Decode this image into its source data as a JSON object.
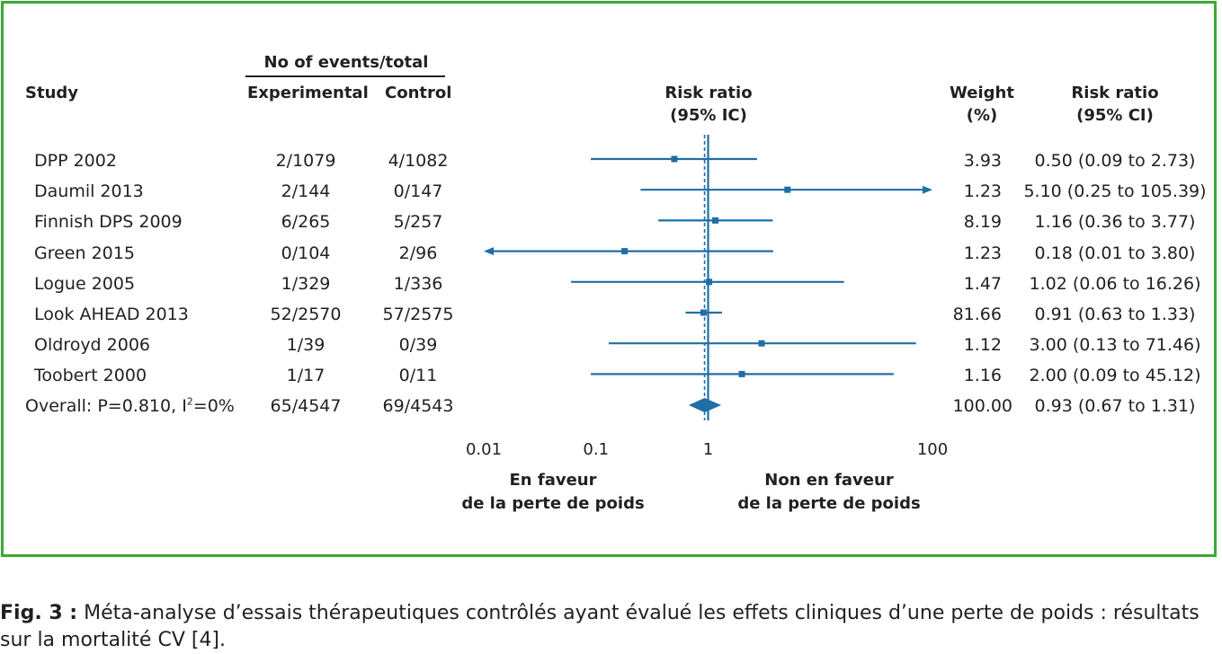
{
  "headers": {
    "study": "Study",
    "events_group": "No of events/total",
    "experimental": "Experimental",
    "control": "Control",
    "rr_plot_line1": "Risk ratio",
    "rr_plot_line2": "(95% IC)",
    "weight_line1": "Weight",
    "weight_line2": "(%)",
    "rr_ci_line1": "Risk ratio",
    "rr_ci_line2": "(95% CI)"
  },
  "overall": {
    "label_prefix": "Overall: P=0.810, I",
    "label_sup": "2",
    "label_suffix": "=0%"
  },
  "favour_left": {
    "line1": "En faveur",
    "line2": "de la perte de poids"
  },
  "favour_right": {
    "line1": "Non en faveur",
    "line2": "de la perte de poids"
  },
  "caption": {
    "fig_label": "Fig. 3 :",
    "text": " Méta-analyse d’essais thérapeutiques contrôlés ayant évalué les effets cliniques d’une perte de poids : résultats sur la mortalité CV [4]."
  },
  "chart_data": {
    "type": "forest",
    "scale": "log",
    "xlim": [
      0.01,
      100
    ],
    "xticks": [
      0.01,
      0.1,
      1,
      100
    ],
    "xtick_labels": [
      "0.01",
      "0.1",
      "1",
      "100"
    ],
    "null_value": 1,
    "pooled_value": 0.93,
    "rows": [
      {
        "study": "DPP 2002",
        "experimental": "2/1079",
        "control": "4/1082",
        "weight": "3.93",
        "rr_ci": "0.50 (0.09 to 2.73)",
        "rr": 0.5,
        "lo": 0.09,
        "hi": 2.73
      },
      {
        "study": "Daumil 2013",
        "experimental": "2/144",
        "control": "0/147",
        "weight": "1.23",
        "rr_ci": "5.10 (0.25 to 105.39)",
        "rr": 5.1,
        "lo": 0.25,
        "hi": 105.39
      },
      {
        "study": "Finnish DPS 2009",
        "experimental": "6/265",
        "control": "5/257",
        "weight": "8.19",
        "rr_ci": "1.16 (0.36 to 3.77)",
        "rr": 1.16,
        "lo": 0.36,
        "hi": 3.77
      },
      {
        "study": "Green 2015",
        "experimental": "0/104",
        "control": "2/96",
        "weight": "1.23",
        "rr_ci": "0.18 (0.01 to 3.80)",
        "rr": 0.18,
        "lo": 0.01,
        "hi": 3.8
      },
      {
        "study": "Logue 2005",
        "experimental": "1/329",
        "control": "1/336",
        "weight": "1.47",
        "rr_ci": "1.02 (0.06 to 16.26)",
        "rr": 1.02,
        "lo": 0.06,
        "hi": 16.26
      },
      {
        "study": "Look AHEAD 2013",
        "experimental": "52/2570",
        "control": "57/2575",
        "weight": "81.66",
        "rr_ci": "0.91 (0.63 to 1.33)",
        "rr": 0.91,
        "lo": 0.63,
        "hi": 1.33
      },
      {
        "study": "Oldroyd 2006",
        "experimental": "1/39",
        "control": "0/39",
        "weight": "1.12",
        "rr_ci": "3.00 (0.13 to 71.46)",
        "rr": 3.0,
        "lo": 0.13,
        "hi": 71.46
      },
      {
        "study": "Toobert 2000",
        "experimental": "1/17",
        "control": "0/11",
        "weight": "1.16",
        "rr_ci": "2.00 (0.09 to 45.12)",
        "rr": 2.0,
        "lo": 0.09,
        "hi": 45.12
      }
    ],
    "overall": {
      "experimental": "65/4547",
      "control": "69/4543",
      "weight": "100.00",
      "rr_ci": "0.93 (0.67 to 1.31)",
      "rr": 0.93,
      "lo": 0.67,
      "hi": 1.31
    },
    "colors": {
      "marks": "#1f6ea6",
      "frame": "#3aaa35",
      "text": "#231f20"
    }
  }
}
